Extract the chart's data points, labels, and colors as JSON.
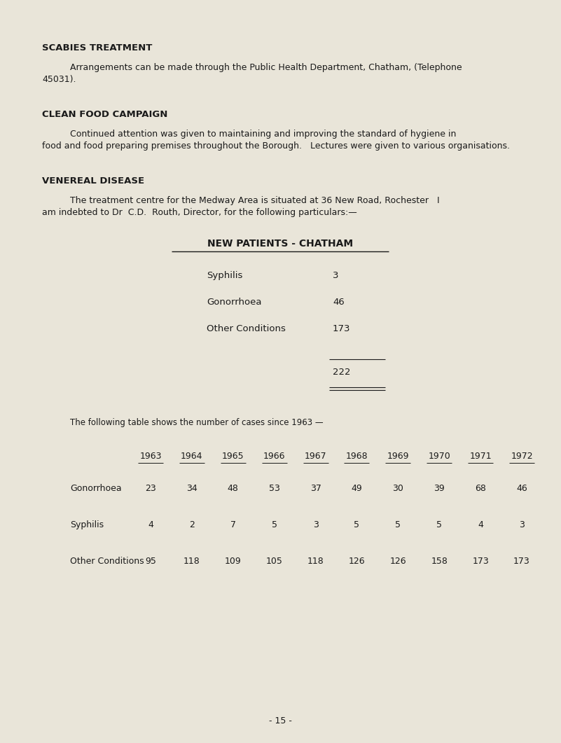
{
  "bg_color": "#e9e5d9",
  "text_color": "#1a1a1a",
  "page_number": "- 15 -",
  "section1_heading": "SCABIES TREATMENT",
  "section1_line1": "          Arrangements can be made through the Public Health Department, Chatham, (Telephone",
  "section1_line2": "45031).",
  "section2_heading": "CLEAN FOOD CAMPAIGN",
  "section2_line1": "          Continued attention was given to maintaining and improving the standard of hygiene in",
  "section2_line2": "food and food preparing premises throughout the Borough.   Lectures were given to various organisations.",
  "section3_heading": "VENEREAL DISEASE",
  "section3_line1": "          The treatment centre for the Medway Area is situated at 36 New Road, Rochester   I",
  "section3_line2": "am indebted to Dr  C.D.  Routh, Director, for the following particulars:—",
  "new_patients_title": "NEW PATIENTS - CHATHAM",
  "np_rows": [
    {
      "label": "Syphilis",
      "value": "3"
    },
    {
      "label": "Gonorrhoea",
      "value": "46"
    },
    {
      "label": "Other Conditions",
      "value": "173"
    }
  ],
  "np_total": "222",
  "following_table_text": "The following table shows the number of cases since 1963 —",
  "table_years": [
    "1963",
    "1964",
    "1965",
    "1966",
    "1967",
    "1968",
    "1969",
    "1970",
    "1971",
    "1972"
  ],
  "table_rows": [
    {
      "label": "Gonorrhoea",
      "values": [
        23,
        34,
        48,
        53,
        37,
        49,
        30,
        39,
        68,
        46
      ]
    },
    {
      "label": "Syphilis",
      "values": [
        4,
        2,
        7,
        5,
        3,
        5,
        5,
        5,
        4,
        3
      ]
    },
    {
      "label": "Other Conditions",
      "values": [
        95,
        118,
        109,
        105,
        118,
        126,
        126,
        158,
        173,
        173
      ]
    }
  ],
  "fig_width": 8.01,
  "fig_height": 10.61,
  "dpi": 100
}
